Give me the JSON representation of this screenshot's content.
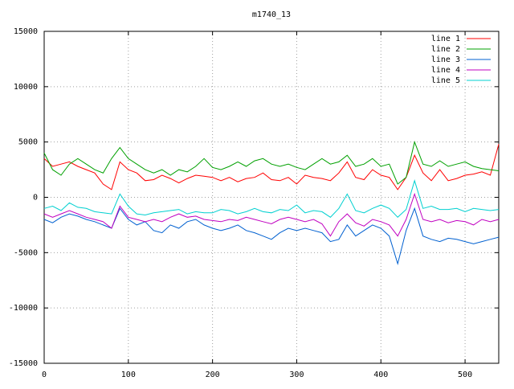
{
  "chart_data": {
    "type": "line",
    "title": "m1740_13",
    "x": [
      0,
      10,
      20,
      30,
      40,
      50,
      60,
      70,
      80,
      90,
      100,
      110,
      120,
      130,
      140,
      150,
      160,
      170,
      180,
      190,
      200,
      210,
      220,
      230,
      240,
      250,
      260,
      270,
      280,
      290,
      300,
      310,
      320,
      330,
      340,
      350,
      360,
      370,
      380,
      390,
      400,
      410,
      420,
      430,
      440,
      450,
      460,
      470,
      480,
      490,
      500,
      510,
      520,
      530,
      540
    ],
    "series": [
      {
        "name": "line 1",
        "color": "#ff0000",
        "values": [
          3500,
          2800,
          3000,
          3200,
          2800,
          2500,
          2200,
          1200,
          700,
          3200,
          2500,
          2200,
          1500,
          1600,
          2000,
          1700,
          1300,
          1700,
          2000,
          1900,
          1800,
          1500,
          1800,
          1400,
          1700,
          1800,
          2200,
          1600,
          1500,
          1800,
          1200,
          2000,
          1800,
          1700,
          1500,
          2200,
          3200,
          1800,
          1600,
          2500,
          2000,
          1800,
          700,
          1800,
          3800,
          2200,
          1500,
          2500,
          1500,
          1700,
          2000,
          2100,
          2300,
          2000,
          4800
        ]
      },
      {
        "name": "line 2",
        "color": "#00a000",
        "values": [
          4000,
          2500,
          2000,
          3000,
          3500,
          3000,
          2500,
          2200,
          3500,
          4500,
          3500,
          3000,
          2500,
          2200,
          2500,
          2000,
          2500,
          2300,
          2800,
          3500,
          2700,
          2500,
          2800,
          3200,
          2800,
          3300,
          3500,
          3000,
          2800,
          3000,
          2700,
          2500,
          3000,
          3500,
          3000,
          3200,
          3800,
          2800,
          3000,
          3500,
          2800,
          3000,
          1200,
          1800,
          5000,
          3000,
          2800,
          3300,
          2800,
          3000,
          3200,
          2800,
          2600,
          2500,
          2400
        ]
      },
      {
        "name": "line 3",
        "color": "#0060d0",
        "values": [
          -2000,
          -2300,
          -1800,
          -1500,
          -1700,
          -2000,
          -2200,
          -2500,
          -2800,
          -1000,
          -2000,
          -2500,
          -2200,
          -3000,
          -3200,
          -2500,
          -2800,
          -2200,
          -2000,
          -2500,
          -2800,
          -3000,
          -2800,
          -2500,
          -3000,
          -3200,
          -3500,
          -3800,
          -3200,
          -2800,
          -3000,
          -2800,
          -3000,
          -3200,
          -4000,
          -3800,
          -2500,
          -3500,
          -3000,
          -2500,
          -2800,
          -3500,
          -6000,
          -3000,
          -1000,
          -3500,
          -3800,
          -4000,
          -3700,
          -3800,
          -4000,
          -4200,
          -4000,
          -3800,
          -3600
        ]
      },
      {
        "name": "line 4",
        "color": "#c000c0",
        "values": [
          -1500,
          -1800,
          -1500,
          -1200,
          -1500,
          -1800,
          -2000,
          -2200,
          -2800,
          -800,
          -1800,
          -2000,
          -2200,
          -2000,
          -2200,
          -1800,
          -1500,
          -1800,
          -1700,
          -2000,
          -2100,
          -2200,
          -2000,
          -2100,
          -1800,
          -2000,
          -2200,
          -2400,
          -2000,
          -1800,
          -2000,
          -2200,
          -2000,
          -2400,
          -3500,
          -2200,
          -1500,
          -2300,
          -2600,
          -2000,
          -2200,
          -2500,
          -3500,
          -2000,
          300,
          -2000,
          -2200,
          -2000,
          -2300,
          -2100,
          -2200,
          -2500,
          -2000,
          -2200,
          -2000
        ]
      },
      {
        "name": "line 5",
        "color": "#00d0d0",
        "values": [
          -1000,
          -800,
          -1200,
          -500,
          -900,
          -1000,
          -1300,
          -1400,
          -1500,
          300,
          -800,
          -1500,
          -1600,
          -1400,
          -1300,
          -1200,
          -1100,
          -1500,
          -1300,
          -1400,
          -1400,
          -1100,
          -1200,
          -1500,
          -1300,
          -1000,
          -1300,
          -1400,
          -1100,
          -1200,
          -700,
          -1400,
          -1200,
          -1300,
          -1800,
          -1000,
          300,
          -1200,
          -1400,
          -1000,
          -700,
          -1000,
          -1800,
          -1100,
          1500,
          -1000,
          -800,
          -1100,
          -1100,
          -1000,
          -1300,
          -1000,
          -1100,
          -1200,
          -1100
        ]
      }
    ],
    "xlim": [
      0,
      540
    ],
    "xticks": [
      0,
      100,
      200,
      300,
      400,
      500
    ],
    "ylim": [
      -15000,
      15000
    ],
    "yticks": [
      -15000,
      -10000,
      -5000,
      0,
      5000,
      10000,
      15000
    ],
    "grid": true,
    "legend": "top-right"
  }
}
